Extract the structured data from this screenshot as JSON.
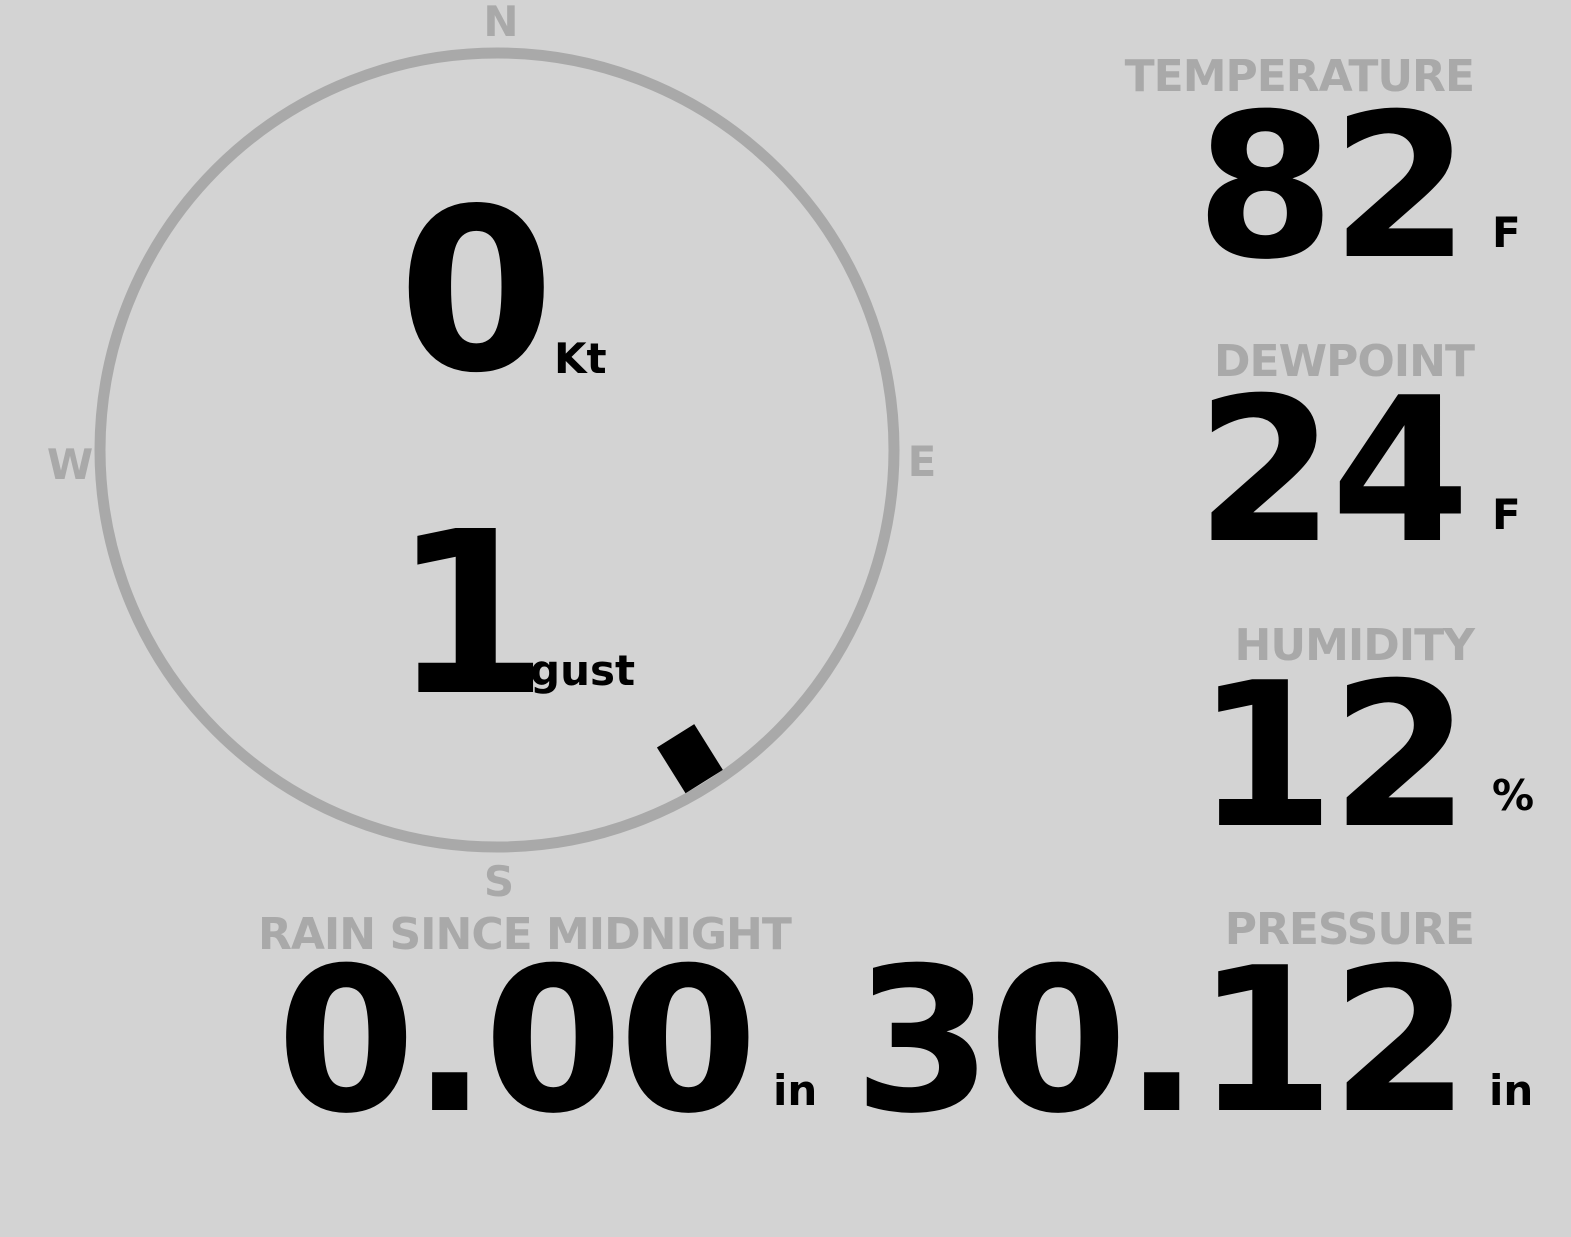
{
  "wind": {
    "speed": "0",
    "speed_unit": "Kt",
    "gust": "1",
    "gust_unit": "gust",
    "direction_deg": 148,
    "cardinals": {
      "n": "N",
      "e": "E",
      "s": "S",
      "w": "W"
    },
    "colors": {
      "ring": "#a9a9a9",
      "marker": "#000000"
    }
  },
  "temperature": {
    "label": "TEMPERATURE",
    "value": "82",
    "unit": "F"
  },
  "dewpoint": {
    "label": "DEWPOINT",
    "value": "24",
    "unit": "F"
  },
  "humidity": {
    "label": "HUMIDITY",
    "value": "12",
    "unit": "%"
  },
  "rain": {
    "label": "RAIN SINCE MIDNIGHT",
    "value": "0.00",
    "unit": "in"
  },
  "pressure": {
    "label": "PRESSURE",
    "value": "30.12",
    "unit": "in"
  },
  "colors": {
    "background": "#d3d3d3",
    "label": "#a9a9a9",
    "value": "#000000"
  }
}
